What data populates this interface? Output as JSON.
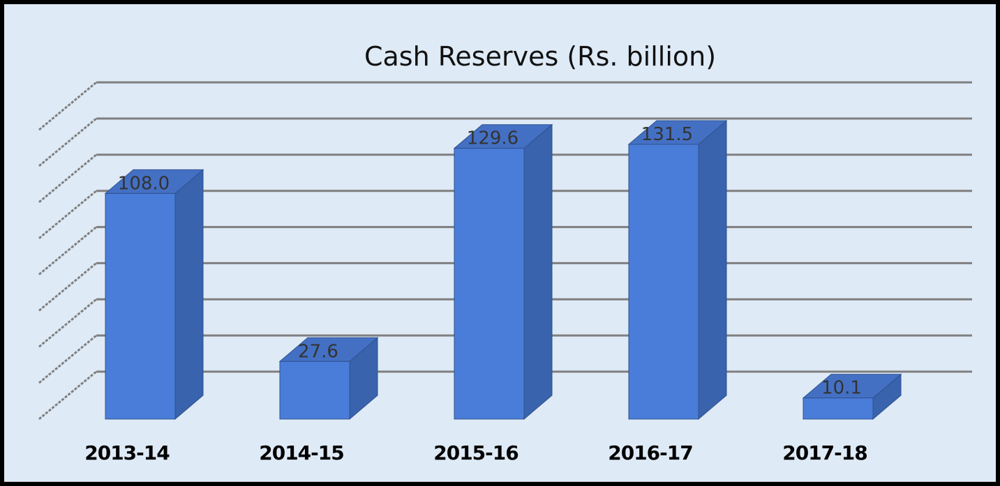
{
  "chart_data": {
    "type": "bar",
    "title": "Cash Reserves (Rs. billion)",
    "categories": [
      "2013-14",
      "2014-15",
      "2015-16",
      "2016-17",
      "2017-18"
    ],
    "values": [
      108.0,
      27.6,
      129.6,
      131.5,
      10.1
    ],
    "value_labels": [
      "108.0",
      "27.6",
      "129.6",
      "131.5",
      "10.1"
    ],
    "ylim": [
      0,
      140
    ],
    "grid": true,
    "style": "3d-column",
    "colors": {
      "bar_front": "#4a7dd9",
      "bar_side": "#3a63ad",
      "bar_top": "#4470c4",
      "gridline": "#7f7f7f",
      "background": "#deeaf6"
    }
  }
}
